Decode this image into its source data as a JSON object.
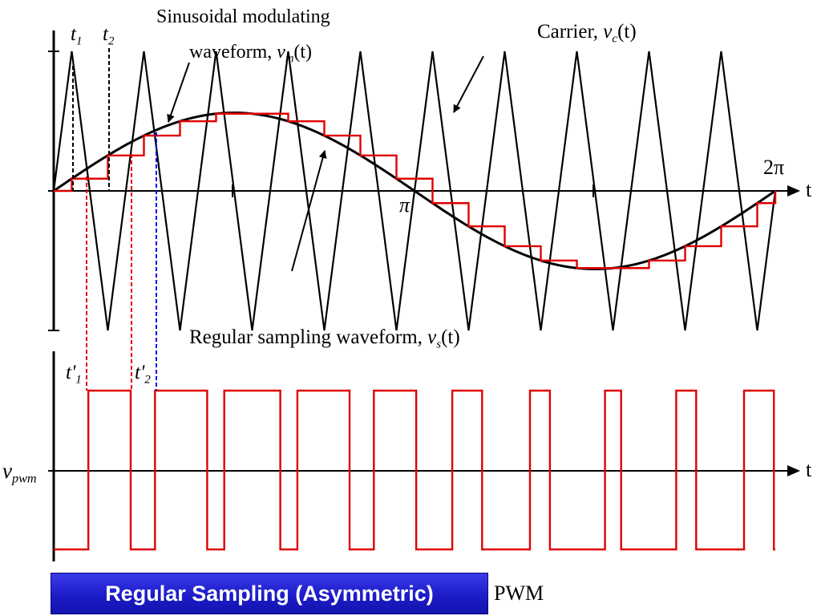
{
  "labels": {
    "t1": "t",
    "t1_sub": "1",
    "t2": "t",
    "t2_sub": "2",
    "sin_line1": "Sinusoidal modulating",
    "sin_line2": "waveform,",
    "vm_sym": "v",
    "vm_sub": "m",
    "vm_arg": "(t)",
    "carrier": "Carrier,",
    "vc_sym": "v",
    "vc_sub": "c",
    "vc_arg": "(t)",
    "two_pi": "2π",
    "pi": "π",
    "t_axis_top": "t",
    "t_axis_bottom": "t",
    "regular": "Regular sampling waveform,",
    "vs_sym": "v",
    "vs_sub": "s",
    "vs_arg": "(t)",
    "t1p": "t'",
    "t1p_sub": "1",
    "t2p": "t'",
    "t2p_sub": "2",
    "vpwm": "v",
    "vpwm_sub": "pwm",
    "banner": "Regular Sampling (Asymmetric)",
    "pwm_suffix": "PWM"
  },
  "colors": {
    "carrier": "#000000",
    "modulating": "#000000",
    "sampled": "#e00000",
    "pwm": "#e00000",
    "guide_red": "#e00000",
    "guide_blue": "#0000ee",
    "banner_bg": "#1c1cc8",
    "banner_text": "#ffffff"
  },
  "waveform": {
    "carrier_cycles": 10,
    "modulation_index": 0.56
  }
}
